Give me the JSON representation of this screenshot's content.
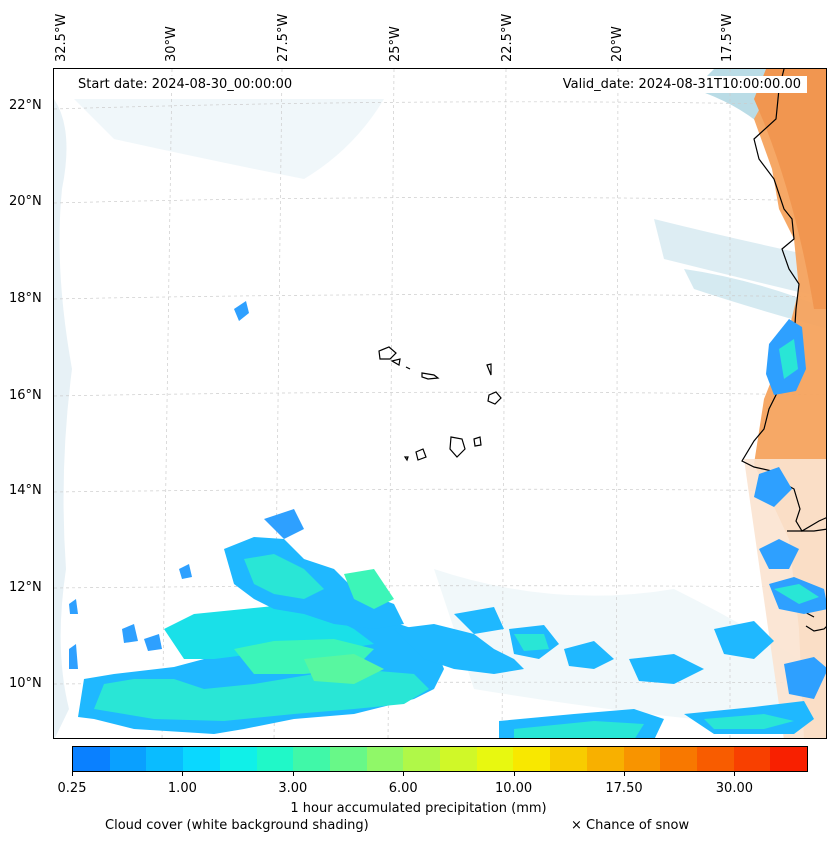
{
  "map": {
    "start_date": "Start date: 2024-08-30_00:00:00",
    "valid_date": "Valid_date: 2024-08-31T10:00:00.00",
    "longitude_labels": [
      "32.5°W",
      "30°W",
      "27.5°W",
      "25°W",
      "22.5°W",
      "20°W",
      "17.5°W"
    ],
    "latitude_labels": [
      "22°N",
      "20°N",
      "18°N",
      "16°N",
      "14°N",
      "12°N",
      "10°N"
    ],
    "colors": {
      "land_outline": "#000000",
      "cloud_shading": "#d9ebf2",
      "hot_land": "#f5a35e"
    }
  },
  "colorbar": {
    "title": "1 hour accumulated precipitation (mm)",
    "tick_labels": [
      "0.25",
      "1.00",
      "3.00",
      "6.00",
      "10.00",
      "17.50",
      "30.00"
    ],
    "colors": [
      "#0a80ff",
      "#0aa0ff",
      "#0abcff",
      "#0ad8ff",
      "#10f0e8",
      "#20f8c8",
      "#40f8a8",
      "#68f888",
      "#90f868",
      "#b0f848",
      "#d0f828",
      "#e8f810",
      "#f8e800",
      "#f8cc00",
      "#f8b000",
      "#f89400",
      "#f87800",
      "#f85c00",
      "#f84000",
      "#f82000"
    ]
  },
  "footer": {
    "cloud_cover": "Cloud cover (white background shading)",
    "snow": "× Chance of snow"
  }
}
